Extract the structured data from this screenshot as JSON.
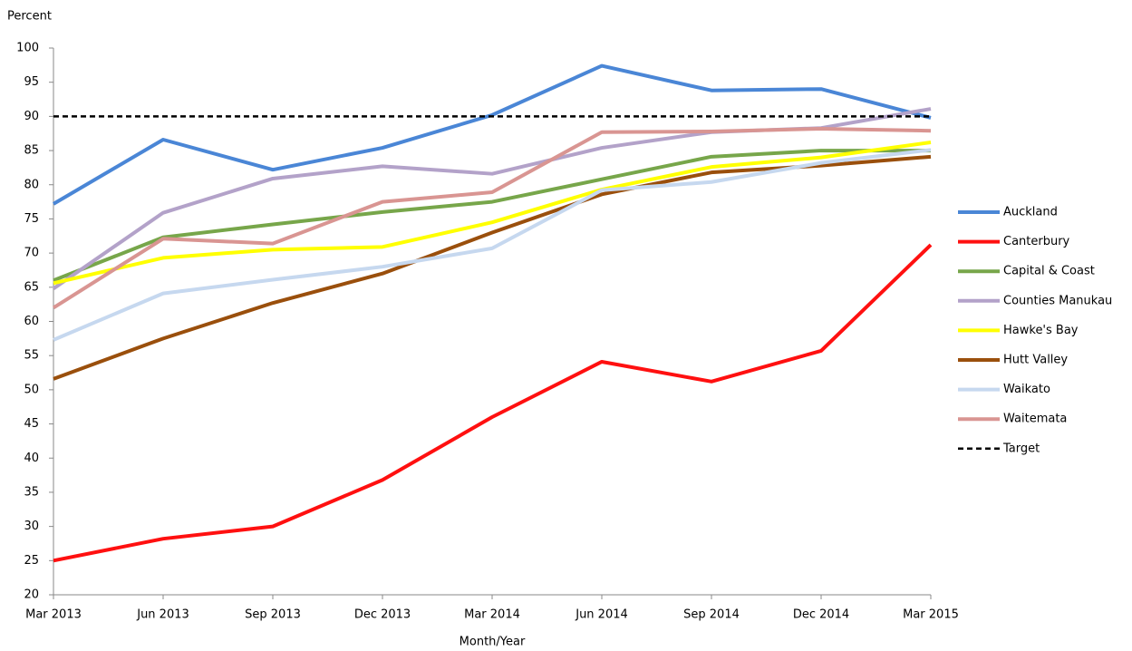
{
  "chart_data": {
    "type": "line",
    "y_label": "Percent",
    "x_label": "Month/Year",
    "categories": [
      "Mar 2013",
      "Jun 2013",
      "Sep 2013",
      "Dec 2013",
      "Mar 2014",
      "Jun 2014",
      "Sep 2014",
      "Dec 2014",
      "Mar 2015"
    ],
    "series": [
      {
        "name": "Auckland",
        "color": "#4a86d6",
        "values": [
          77.2,
          86.6,
          82.2,
          85.4,
          90.2,
          97.4,
          93.8,
          94.0,
          89.8
        ]
      },
      {
        "name": "Canterbury",
        "color": "#ff1010",
        "values": [
          25,
          28.2,
          30,
          36.8,
          46,
          54.1,
          51.2,
          55.7,
          71.2
        ]
      },
      {
        "name": "Capital & Coast",
        "color": "#77a64a",
        "values": [
          66,
          72.3,
          74.2,
          76,
          77.5,
          80.8,
          84.1,
          85,
          85
        ]
      },
      {
        "name": "Counties Manukau",
        "color": "#b3a2c9",
        "values": [
          64.8,
          75.9,
          80.9,
          82.7,
          81.6,
          85.4,
          87.7,
          88.3,
          91.1
        ]
      },
      {
        "name": "Hawke's Bay",
        "color": "#ffff00",
        "values": [
          65.6,
          69.3,
          70.5,
          70.9,
          74.5,
          79.3,
          82.6,
          84,
          86.2
        ]
      },
      {
        "name": "Hutt Valley",
        "color": "#9a4f0c",
        "values": [
          51.6,
          57.5,
          62.7,
          67,
          73,
          78.6,
          81.8,
          82.8,
          84.1
        ]
      },
      {
        "name": "Waikato",
        "color": "#c6d8ef",
        "values": [
          57.3,
          64.1,
          66.1,
          68,
          70.7,
          79.2,
          80.4,
          83.2,
          85.1
        ]
      },
      {
        "name": "Waitemata",
        "color": "#d99592",
        "values": [
          62,
          72.1,
          71.4,
          77.5,
          78.9,
          87.7,
          87.8,
          88.2,
          87.9
        ]
      },
      {
        "name": "Target",
        "color": "#000000",
        "dash": true,
        "values": [
          90,
          90,
          90,
          90,
          90,
          90,
          90,
          90,
          90
        ]
      }
    ],
    "ylim": [
      20,
      100
    ],
    "yticks": [
      20,
      25,
      30,
      35,
      40,
      45,
      50,
      55,
      60,
      65,
      70,
      75,
      80,
      85,
      90,
      95,
      100
    ],
    "grid": false,
    "legend": "right"
  }
}
